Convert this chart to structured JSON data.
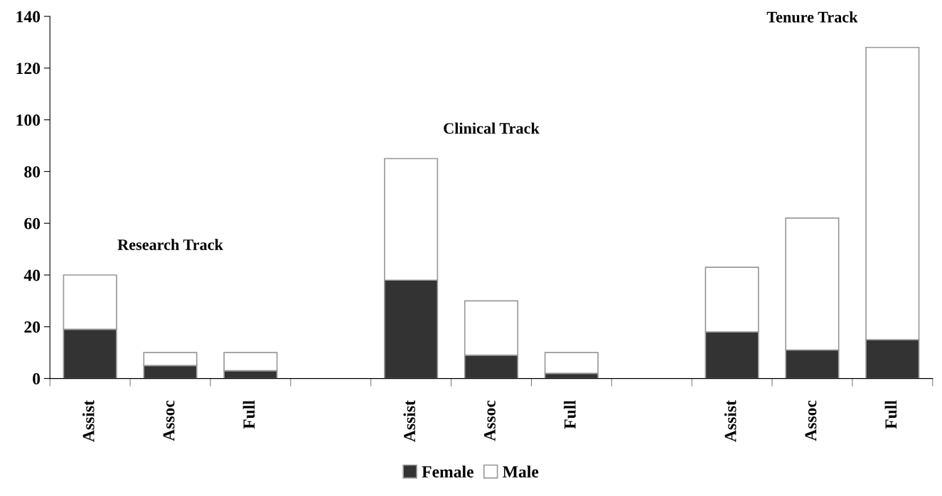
{
  "chart_data": {
    "type": "bar",
    "stacked": true,
    "categories": [
      "Assist",
      "Assoc",
      "Full",
      null,
      "Assist",
      "Assoc",
      "Full",
      null,
      "Assist",
      "Assoc",
      "Full"
    ],
    "series": [
      {
        "name": "Female",
        "color": "#333333",
        "values": [
          19,
          5,
          3,
          null,
          38,
          9,
          2,
          null,
          18,
          11,
          15
        ]
      },
      {
        "name": "Male",
        "color": "#ffffff",
        "values": [
          21,
          5,
          7,
          null,
          47,
          21,
          8,
          null,
          25,
          51,
          113
        ]
      }
    ],
    "annotations": [
      "Research Track",
      "Clinical Track",
      "Tenure Track"
    ],
    "ylim": [
      0,
      140
    ],
    "yticks": [
      0,
      20,
      40,
      60,
      80,
      100,
      120,
      140
    ],
    "grid": false,
    "legend": "bottom"
  }
}
